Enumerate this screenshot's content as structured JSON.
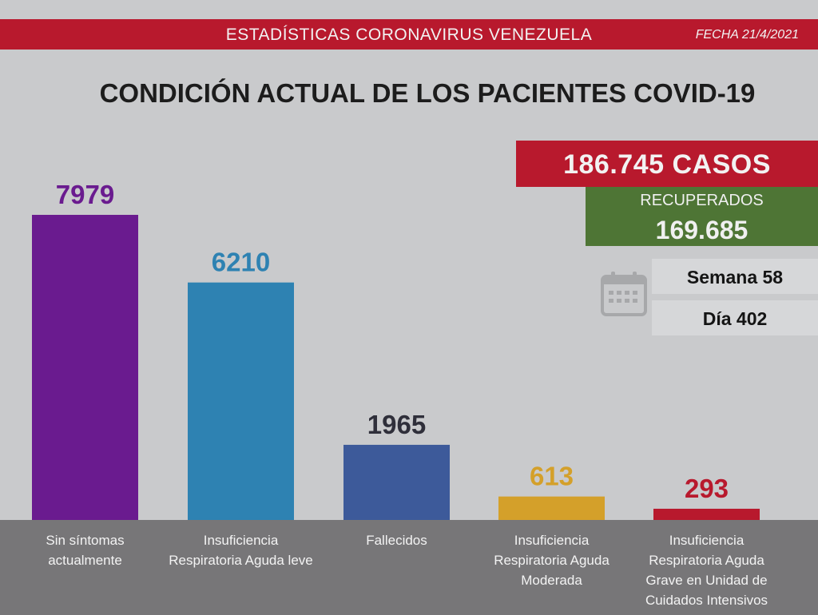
{
  "header": {
    "title": "ESTADÍSTICAS CORONAVIRUS VENEZUELA",
    "date": "FECHA 21/4/2021"
  },
  "main_title": "CONDICIÓN ACTUAL DE LOS PACIENTES COVID-19",
  "summary": {
    "cases": "186.745 CASOS",
    "recovered_label": "RECUPERADOS",
    "recovered_value": "169.685",
    "week": "Semana 58",
    "day": "Día 402"
  },
  "icons": {
    "calendar": "calendar-icon"
  },
  "colors": {
    "header_red": "#b8192d",
    "recovered_green": "#4e7535",
    "category_band": "#777678"
  },
  "chart_data": {
    "type": "bar",
    "title": "CONDICIÓN ACTUAL DE LOS PACIENTES COVID-19",
    "categories": [
      "Sin síntomas\nactualmente",
      "Insuficiencia\nRespiratoria Aguda leve",
      "Fallecidos",
      "Insuficiencia\nRespiratoria Aguda\nModerada",
      "Insuficiencia\nRespiratoria Aguda\nGrave en Unidad de\nCuidados Intensivos"
    ],
    "values": [
      7979,
      6210,
      1965,
      613,
      293
    ],
    "data_labels": [
      "7979",
      "6210",
      "1965",
      "613",
      "293"
    ],
    "colors": [
      "#6a1b8f",
      "#2e82b2",
      "#3d5a9a",
      "#d4a02a",
      "#b8192d"
    ],
    "label_colors": [
      "#6a1b8f",
      "#2e82b2",
      "#2f2f3a",
      "#d4a02a",
      "#b8192d"
    ],
    "ylim": [
      0,
      8000
    ],
    "grid": false,
    "legend": "none"
  }
}
